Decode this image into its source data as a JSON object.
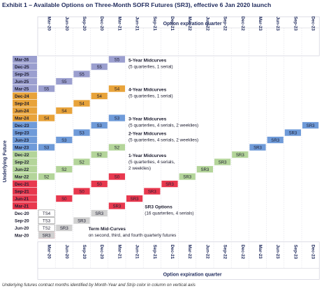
{
  "title": "Exhibit 1 – Available Options on Three-Month SOFR Futures (SR3), effective 6 Jan 2020 launch",
  "footnote": "Underlying futures contract months identified by Month-Year and Strip color in column on vertical axis",
  "axis": {
    "top_title": "Option expiration quarter",
    "bottom_title": "Option expiration quarter",
    "y_title": "Underlying Future",
    "quarters": [
      "Mar-20",
      "Jun-20",
      "Sep-20",
      "Dec-20",
      "Mar-21",
      "Jun-21",
      "Sep-21",
      "Dec-21",
      "Mar-22",
      "Jun-22",
      "Sep-22",
      "Dec-22",
      "Mar-23",
      "Jun-23",
      "Sep-23",
      "Dec-23"
    ]
  },
  "rows": [
    {
      "label": "Mar-26",
      "group": "S5"
    },
    {
      "label": "Dec-25",
      "group": "S5"
    },
    {
      "label": "Sep-25",
      "group": "S5"
    },
    {
      "label": "Jun-25",
      "group": "S5"
    },
    {
      "label": "Mar-25",
      "group": "S5"
    },
    {
      "label": "Dec-24",
      "group": "S4"
    },
    {
      "label": "Sep-24",
      "group": "S4"
    },
    {
      "label": "Jun-24",
      "group": "S4"
    },
    {
      "label": "Mar-24",
      "group": "S4"
    },
    {
      "label": "Dec-23",
      "group": "S3"
    },
    {
      "label": "Sep-23",
      "group": "S3"
    },
    {
      "label": "Jun-23",
      "group": "S3"
    },
    {
      "label": "Mar-23",
      "group": "S3"
    },
    {
      "label": "Dec-22",
      "group": "S2"
    },
    {
      "label": "Sep-22",
      "group": "S2"
    },
    {
      "label": "Jun-22",
      "group": "S2"
    },
    {
      "label": "Mar-22",
      "group": "S2"
    },
    {
      "label": "Dec-21",
      "group": "S0"
    },
    {
      "label": "Sep-21",
      "group": "S0"
    },
    {
      "label": "Jun-21",
      "group": "S0"
    },
    {
      "label": "Mar-21",
      "group": "S0"
    },
    {
      "label": "Dec-20",
      "group": "TS"
    },
    {
      "label": "Sep-20",
      "group": "TS"
    },
    {
      "label": "Jun-20",
      "group": "TS"
    },
    {
      "label": "Mar-20",
      "group": "TS"
    }
  ],
  "colors": {
    "S5": "#9b9fcf",
    "S4": "#e8a33a",
    "S3": "#6f9bd9",
    "S2": "#b4d59a",
    "S0": "#e8384e",
    "TS": "#d0d0d0",
    "axis_text": "#1f2a5c",
    "title": "#1f2a5c"
  },
  "cells": [
    {
      "text": "S5",
      "row": "Mar-25",
      "col": "Mar-20",
      "group": "S5"
    },
    {
      "text": "S5",
      "row": "Jun-25",
      "col": "Jun-20",
      "group": "S5"
    },
    {
      "text": "S5",
      "row": "Sep-25",
      "col": "Sep-20",
      "group": "S5"
    },
    {
      "text": "S5",
      "row": "Dec-25",
      "col": "Dec-20",
      "group": "S5"
    },
    {
      "text": "S5",
      "row": "Mar-26",
      "col": "Mar-21",
      "group": "S5"
    },
    {
      "text": "S4",
      "row": "Mar-24",
      "col": "Mar-20",
      "group": "S4"
    },
    {
      "text": "S4",
      "row": "Jun-24",
      "col": "Jun-20",
      "group": "S4"
    },
    {
      "text": "S4",
      "row": "Sep-24",
      "col": "Sep-20",
      "group": "S4"
    },
    {
      "text": "S4",
      "row": "Dec-24",
      "col": "Dec-20",
      "group": "S4"
    },
    {
      "text": "S4",
      "row": "Mar-25",
      "col": "Mar-21",
      "group": "S4"
    },
    {
      "text": "S3",
      "row": "Mar-23",
      "col": "Mar-20",
      "group": "S3"
    },
    {
      "text": "S3",
      "row": "Jun-23",
      "col": "Jun-20",
      "group": "S3"
    },
    {
      "text": "S3",
      "row": "Sep-23",
      "col": "Sep-20",
      "group": "S3"
    },
    {
      "text": "S3",
      "row": "Dec-23",
      "col": "Dec-20",
      "group": "S3"
    },
    {
      "text": "S3",
      "row": "Mar-24",
      "col": "Mar-21",
      "group": "S3"
    },
    {
      "text": "S2",
      "row": "Mar-22",
      "col": "Mar-20",
      "group": "S2"
    },
    {
      "text": "S2",
      "row": "Jun-22",
      "col": "Jun-20",
      "group": "S2"
    },
    {
      "text": "S2",
      "row": "Sep-22",
      "col": "Sep-20",
      "group": "S2"
    },
    {
      "text": "S2",
      "row": "Dec-22",
      "col": "Dec-20",
      "group": "S2"
    },
    {
      "text": "S2",
      "row": "Mar-23",
      "col": "Mar-21",
      "group": "S2"
    },
    {
      "text": "S0",
      "row": "Mar-20",
      "col": "Mar-20",
      "group": "S0"
    },
    {
      "text": "S0",
      "row": "Jun-21",
      "col": "Jun-20",
      "group": "S0"
    },
    {
      "text": "S0",
      "row": "Sep-21",
      "col": "Sep-20",
      "group": "S0"
    },
    {
      "text": "S0",
      "row": "Dec-21",
      "col": "Dec-20",
      "group": "S0"
    },
    {
      "text": "S0",
      "row": "Mar-22",
      "col": "Mar-21",
      "group": "S0"
    },
    {
      "text": "SR3",
      "row": "Mar-20",
      "col": "Mar-20",
      "group": "TS"
    },
    {
      "text": "SR3",
      "row": "Jun-20",
      "col": "Jun-20",
      "group": "TS"
    },
    {
      "text": "SR3",
      "row": "Sep-20",
      "col": "Sep-20",
      "group": "TS"
    },
    {
      "text": "SR3",
      "row": "Dec-20",
      "col": "Dec-20",
      "group": "TS"
    },
    {
      "text": "SR3",
      "row": "Mar-21",
      "col": "Mar-21",
      "group": "S0"
    },
    {
      "text": "SR3",
      "row": "Jun-21",
      "col": "Jun-21",
      "group": "S0"
    },
    {
      "text": "SR3",
      "row": "Sep-21",
      "col": "Sep-21",
      "group": "S0"
    },
    {
      "text": "SR3",
      "row": "Dec-21",
      "col": "Dec-21",
      "group": "S0"
    },
    {
      "text": "SR3",
      "row": "Mar-22",
      "col": "Mar-22",
      "group": "S2"
    },
    {
      "text": "SR3",
      "row": "Jun-22",
      "col": "Jun-22",
      "group": "S2"
    },
    {
      "text": "SR3",
      "row": "Sep-22",
      "col": "Sep-22",
      "group": "S2"
    },
    {
      "text": "SR3",
      "row": "Dec-22",
      "col": "Dec-22",
      "group": "S2"
    },
    {
      "text": "SR3",
      "row": "Mar-23",
      "col": "Mar-23",
      "group": "S3"
    },
    {
      "text": "SR3",
      "row": "Jun-23",
      "col": "Jun-23",
      "group": "S3"
    },
    {
      "text": "SR3",
      "row": "Sep-23",
      "col": "Sep-23",
      "group": "S3"
    },
    {
      "text": "SR3",
      "row": "Dec-23",
      "col": "Dec-23",
      "group": "S3"
    },
    {
      "text": "TS4",
      "row": "Dec-20",
      "col": "Mar-20",
      "group": "none"
    },
    {
      "text": "TS3",
      "row": "Sep-20",
      "col": "Mar-20",
      "group": "none"
    },
    {
      "text": "TS2",
      "row": "Jun-20",
      "col": "Mar-20",
      "group": "none"
    },
    {
      "text": "SR3",
      "row": "Jun-20",
      "col": "Jun-20",
      "group": "TS"
    }
  ],
  "annotations": [
    {
      "title": "5-Year Midcurves",
      "lines": [
        "(5 quarterlies, 1 serial)"
      ],
      "row": "Mar-26"
    },
    {
      "title": "4-Year Midcurves",
      "lines": [
        "(5 quarterlies, 1 serial)"
      ],
      "row": "Mar-25"
    },
    {
      "title": "3-Year Midcurves",
      "lines": [
        "(5 quarterlies, 4 serials, 2 weeklies)"
      ],
      "row": "Mar-24"
    },
    {
      "title": "2-Year Midcurves",
      "lines": [
        "(5 quarterlies, 4 serials, 2 weeklies)"
      ],
      "row": "Sep-23"
    },
    {
      "title": "1-Year Midcurves",
      "lines": [
        "(5 quarterlies, 4 serials,",
        "2 weeklies)"
      ],
      "row": "Dec-22"
    },
    {
      "title": "SR3 Options",
      "lines": [
        "(16 quarterlies, 4 serials)"
      ],
      "row": "Mar-21"
    },
    {
      "title": "Term Mid-Curves",
      "lines": [
        "on second, third, and fourth quarterly futures"
      ],
      "row": "Jun-20"
    }
  ]
}
